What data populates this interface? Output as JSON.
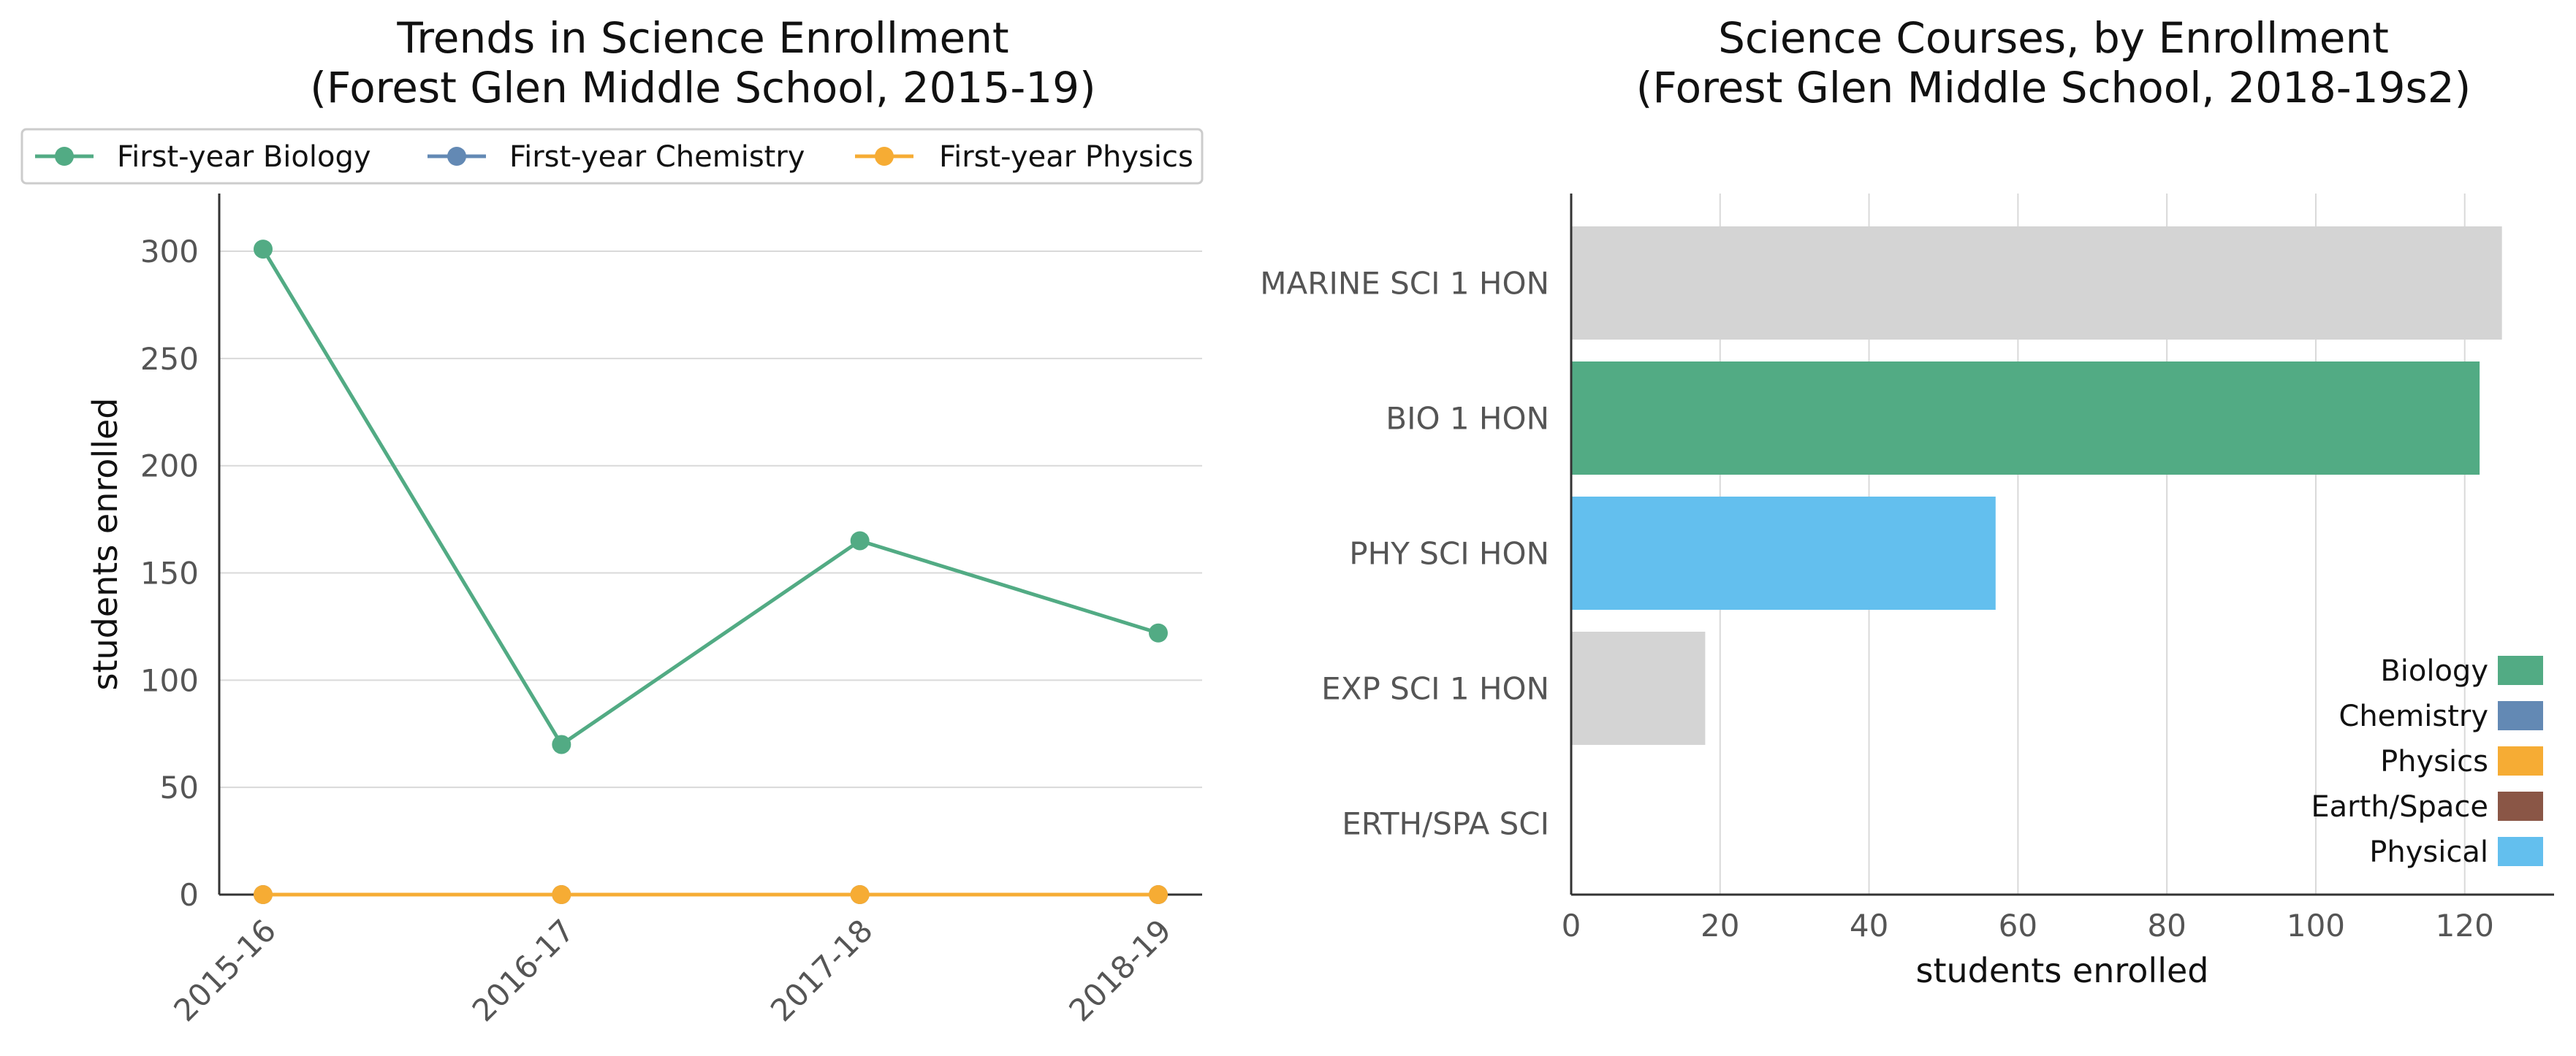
{
  "colors": {
    "Biology": "#52ab84",
    "Chemistry": "#6389b4",
    "Physics": "#f6ac34",
    "Earth/Space": "#8a5646",
    "Physical": "#63bfee",
    "Other": "#d4d4d4",
    "grid": "#d9d9d9",
    "axis": "#333333"
  },
  "chart_data": [
    {
      "type": "line",
      "title": "Trends in Science Enrollment\n(Forest Glen Middle School, 2015-19)",
      "xlabel": "",
      "ylabel": "students enrolled",
      "x": [
        "2015-16",
        "2016-17",
        "2017-18",
        "2018-19"
      ],
      "yticks": [
        0,
        50,
        100,
        150,
        200,
        250,
        300
      ],
      "ylim": [
        0,
        315
      ],
      "grid": "horizontal",
      "legend_position": "top",
      "series": [
        {
          "name": "First-year Biology",
          "color_key": "Biology",
          "values": [
            301,
            70,
            165,
            122
          ]
        },
        {
          "name": "First-year Chemistry",
          "color_key": "Chemistry",
          "values": [
            0,
            0,
            0,
            0
          ]
        },
        {
          "name": "First-year Physics",
          "color_key": "Physics",
          "values": [
            0,
            0,
            0,
            0
          ]
        }
      ]
    },
    {
      "type": "bar",
      "orientation": "horizontal",
      "title": "Science Courses, by Enrollment\n(Forest Glen Middle School, 2018-19s2)",
      "xlabel": "students enrolled",
      "ylabel": "",
      "xticks": [
        0,
        20,
        40,
        60,
        80,
        100,
        120
      ],
      "xlim": [
        0,
        132
      ],
      "grid": "vertical",
      "legend_position": "lower-right",
      "categories": [
        "MARINE SCI 1 HON",
        "BIO 1 HON",
        "PHY SCI HON",
        "EXP SCI 1 HON",
        "ERTH/SPA SCI"
      ],
      "values": [
        125,
        122,
        57,
        18,
        0
      ],
      "bar_color_keys": [
        "Other",
        "Biology",
        "Physical",
        "Other",
        "Earth/Space"
      ],
      "legend": [
        "Biology",
        "Chemistry",
        "Physics",
        "Earth/Space",
        "Physical"
      ]
    }
  ]
}
